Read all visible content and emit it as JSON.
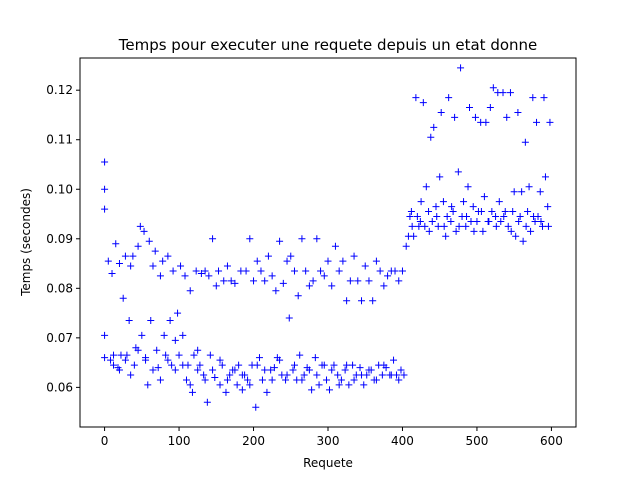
{
  "chart_data": {
    "type": "scatter",
    "title": "Temps pour executer une requete depuis un etat donne",
    "xlabel": "Requete",
    "ylabel": "Temps (secondes)",
    "xlim": [
      -33,
      633
    ],
    "ylim": [
      0.052,
      0.1265
    ],
    "xticks": [
      0,
      100,
      200,
      300,
      400,
      500,
      600
    ],
    "yticks": [
      0.06,
      0.07,
      0.08,
      0.09,
      0.1,
      0.11,
      0.12
    ],
    "xtick_labels": [
      "0",
      "100",
      "200",
      "300",
      "400",
      "500",
      "600"
    ],
    "ytick_labels": [
      "0.06",
      "0.07",
      "0.08",
      "0.09",
      "0.10",
      "0.11",
      "0.12"
    ],
    "grid": false,
    "marker": "+",
    "color": "#0000ff",
    "series": [
      {
        "points": [
          [
            0,
            0.1055
          ],
          [
            0,
            0.1
          ],
          [
            0,
            0.096
          ],
          [
            0,
            0.0705
          ],
          [
            0,
            0.066
          ],
          [
            5,
            0.0855
          ],
          [
            8,
            0.0655
          ],
          [
            10,
            0.083
          ],
          [
            12,
            0.0645
          ],
          [
            15,
            0.089
          ],
          [
            18,
            0.064
          ],
          [
            20,
            0.085
          ],
          [
            22,
            0.0665
          ],
          [
            25,
            0.078
          ],
          [
            28,
            0.0865
          ],
          [
            30,
            0.0665
          ],
          [
            33,
            0.0735
          ],
          [
            35,
            0.0845
          ],
          [
            38,
            0.0865
          ],
          [
            40,
            0.0645
          ],
          [
            42,
            0.068
          ],
          [
            45,
            0.0885
          ],
          [
            48,
            0.0925
          ],
          [
            50,
            0.0705
          ],
          [
            53,
            0.0915
          ],
          [
            55,
            0.066
          ],
          [
            58,
            0.0605
          ],
          [
            60,
            0.0895
          ],
          [
            62,
            0.0735
          ],
          [
            65,
            0.0845
          ],
          [
            68,
            0.0875
          ],
          [
            70,
            0.0675
          ],
          [
            72,
            0.064
          ],
          [
            75,
            0.0825
          ],
          [
            78,
            0.0855
          ],
          [
            80,
            0.0705
          ],
          [
            82,
            0.0665
          ],
          [
            85,
            0.0865
          ],
          [
            88,
            0.0735
          ],
          [
            90,
            0.0645
          ],
          [
            92,
            0.0835
          ],
          [
            95,
            0.0695
          ],
          [
            98,
            0.075
          ],
          [
            100,
            0.0665
          ],
          [
            102,
            0.0845
          ],
          [
            105,
            0.0705
          ],
          [
            108,
            0.0825
          ],
          [
            110,
            0.0615
          ],
          [
            112,
            0.0645
          ],
          [
            115,
            0.0795
          ],
          [
            118,
            0.059
          ],
          [
            120,
            0.0665
          ],
          [
            123,
            0.0835
          ],
          [
            125,
            0.0635
          ],
          [
            128,
            0.0645
          ],
          [
            130,
            0.083
          ],
          [
            133,
            0.0625
          ],
          [
            135,
            0.0835
          ],
          [
            138,
            0.057
          ],
          [
            140,
            0.0825
          ],
          [
            142,
            0.0665
          ],
          [
            145,
            0.09
          ],
          [
            148,
            0.062
          ],
          [
            150,
            0.0805
          ],
          [
            153,
            0.0835
          ],
          [
            155,
            0.0605
          ],
          [
            158,
            0.0645
          ],
          [
            160,
            0.0815
          ],
          [
            163,
            0.059
          ],
          [
            165,
            0.0845
          ],
          [
            168,
            0.0625
          ],
          [
            170,
            0.0815
          ],
          [
            172,
            0.0635
          ],
          [
            175,
            0.081
          ],
          [
            178,
            0.0605
          ],
          [
            180,
            0.0645
          ],
          [
            183,
            0.0835
          ],
          [
            185,
            0.0595
          ],
          [
            188,
            0.0625
          ],
          [
            190,
            0.0835
          ],
          [
            192,
            0.0615
          ],
          [
            195,
            0.09
          ],
          [
            198,
            0.0645
          ],
          [
            200,
            0.0815
          ],
          [
            203,
            0.056
          ],
          [
            205,
            0.0855
          ],
          [
            208,
            0.066
          ],
          [
            210,
            0.0835
          ],
          [
            212,
            0.0615
          ],
          [
            215,
            0.0815
          ],
          [
            218,
            0.059
          ],
          [
            220,
            0.0865
          ],
          [
            223,
            0.0635
          ],
          [
            225,
            0.0825
          ],
          [
            228,
            0.064
          ],
          [
            230,
            0.0795
          ],
          [
            232,
            0.066
          ],
          [
            235,
            0.0895
          ],
          [
            238,
            0.0625
          ],
          [
            240,
            0.081
          ],
          [
            243,
            0.0615
          ],
          [
            245,
            0.0855
          ],
          [
            248,
            0.074
          ],
          [
            250,
            0.0865
          ],
          [
            253,
            0.0635
          ],
          [
            255,
            0.0835
          ],
          [
            258,
            0.0615
          ],
          [
            260,
            0.0785
          ],
          [
            262,
            0.0665
          ],
          [
            265,
            0.09
          ],
          [
            268,
            0.0625
          ],
          [
            270,
            0.0835
          ],
          [
            272,
            0.064
          ],
          [
            275,
            0.0805
          ],
          [
            278,
            0.0595
          ],
          [
            280,
            0.0815
          ],
          [
            283,
            0.066
          ],
          [
            285,
            0.09
          ],
          [
            288,
            0.0605
          ],
          [
            290,
            0.0835
          ],
          [
            292,
            0.0645
          ],
          [
            295,
            0.0825
          ],
          [
            298,
            0.0615
          ],
          [
            300,
            0.0855
          ],
          [
            302,
            0.0595
          ],
          [
            305,
            0.0805
          ],
          [
            308,
            0.0645
          ],
          [
            310,
            0.0885
          ],
          [
            313,
            0.0625
          ],
          [
            315,
            0.0835
          ],
          [
            318,
            0.0615
          ],
          [
            320,
            0.0855
          ],
          [
            323,
            0.0635
          ],
          [
            325,
            0.0775
          ],
          [
            328,
            0.0605
          ],
          [
            330,
            0.0815
          ],
          [
            333,
            0.0645
          ],
          [
            335,
            0.0865
          ],
          [
            338,
            0.0625
          ],
          [
            340,
            0.0815
          ],
          [
            343,
            0.064
          ],
          [
            345,
            0.0775
          ],
          [
            348,
            0.0605
          ],
          [
            350,
            0.0845
          ],
          [
            352,
            0.0625
          ],
          [
            355,
            0.0815
          ],
          [
            358,
            0.0635
          ],
          [
            360,
            0.0775
          ],
          [
            362,
            0.0615
          ],
          [
            365,
            0.0855
          ],
          [
            368,
            0.0645
          ],
          [
            370,
            0.0835
          ],
          [
            373,
            0.0625
          ],
          [
            375,
            0.0805
          ],
          [
            378,
            0.064
          ],
          [
            380,
            0.0825
          ],
          [
            383,
            0.0625
          ],
          [
            385,
            0.0835
          ],
          [
            388,
            0.0655
          ],
          [
            390,
            0.0835
          ],
          [
            392,
            0.0625
          ],
          [
            395,
            0.0815
          ],
          [
            398,
            0.0635
          ],
          [
            400,
            0.0835
          ],
          [
            402,
            0.0625
          ],
          [
            405,
            0.0885
          ],
          [
            408,
            0.0905
          ],
          [
            410,
            0.0945
          ],
          [
            413,
            0.0925
          ],
          [
            415,
            0.0905
          ],
          [
            418,
            0.1185
          ],
          [
            420,
            0.0945
          ],
          [
            422,
            0.0925
          ],
          [
            425,
            0.0975
          ],
          [
            428,
            0.1175
          ],
          [
            430,
            0.0925
          ],
          [
            432,
            0.1005
          ],
          [
            435,
            0.0955
          ],
          [
            438,
            0.1105
          ],
          [
            440,
            0.0935
          ],
          [
            442,
            0.1125
          ],
          [
            445,
            0.0965
          ],
          [
            448,
            0.0925
          ],
          [
            450,
            0.1025
          ],
          [
            452,
            0.1155
          ],
          [
            455,
            0.0975
          ],
          [
            458,
            0.0905
          ],
          [
            460,
            0.0945
          ],
          [
            462,
            0.1185
          ],
          [
            465,
            0.0935
          ],
          [
            468,
            0.0955
          ],
          [
            470,
            0.1145
          ],
          [
            472,
            0.0915
          ],
          [
            475,
            0.1035
          ],
          [
            478,
            0.1245
          ],
          [
            480,
            0.0945
          ],
          [
            482,
            0.0975
          ],
          [
            485,
            0.0925
          ],
          [
            488,
            0.1005
          ],
          [
            490,
            0.1165
          ],
          [
            492,
            0.0935
          ],
          [
            495,
            0.0965
          ],
          [
            498,
            0.1145
          ],
          [
            500,
            0.0935
          ],
          [
            502,
            0.0955
          ],
          [
            505,
            0.1135
          ],
          [
            508,
            0.0915
          ],
          [
            510,
            0.0985
          ],
          [
            512,
            0.1135
          ],
          [
            515,
            0.0935
          ],
          [
            518,
            0.1165
          ],
          [
            520,
            0.0955
          ],
          [
            522,
            0.1205
          ],
          [
            525,
            0.0945
          ],
          [
            528,
            0.1195
          ],
          [
            530,
            0.0975
          ],
          [
            532,
            0.0935
          ],
          [
            535,
            0.1195
          ],
          [
            538,
            0.0955
          ],
          [
            540,
            0.1145
          ],
          [
            542,
            0.0925
          ],
          [
            545,
            0.1195
          ],
          [
            548,
            0.0955
          ],
          [
            550,
            0.0995
          ],
          [
            552,
            0.0905
          ],
          [
            555,
            0.1155
          ],
          [
            558,
            0.0945
          ],
          [
            560,
            0.0995
          ],
          [
            562,
            0.0895
          ],
          [
            565,
            0.1095
          ],
          [
            568,
            0.0955
          ],
          [
            570,
            0.1005
          ],
          [
            572,
            0.0915
          ],
          [
            575,
            0.1185
          ],
          [
            578,
            0.0935
          ],
          [
            580,
            0.1135
          ],
          [
            582,
            0.0945
          ],
          [
            585,
            0.0995
          ],
          [
            588,
            0.0925
          ],
          [
            590,
            0.1185
          ],
          [
            592,
            0.1025
          ],
          [
            595,
            0.0965
          ],
          [
            598,
            0.1135
          ],
          [
            12,
            0.0665
          ],
          [
            20,
            0.0635
          ],
          [
            28,
            0.0655
          ],
          [
            35,
            0.0625
          ],
          [
            45,
            0.0675
          ],
          [
            55,
            0.0655
          ],
          [
            65,
            0.0635
          ],
          [
            75,
            0.0615
          ],
          [
            85,
            0.0655
          ],
          [
            95,
            0.0635
          ],
          [
            105,
            0.0645
          ],
          [
            115,
            0.0605
          ],
          [
            125,
            0.0675
          ],
          [
            135,
            0.0615
          ],
          [
            145,
            0.0635
          ],
          [
            155,
            0.0655
          ],
          [
            165,
            0.0615
          ],
          [
            175,
            0.0635
          ],
          [
            185,
            0.0625
          ],
          [
            195,
            0.0605
          ],
          [
            205,
            0.0645
          ],
          [
            215,
            0.0635
          ],
          [
            225,
            0.0615
          ],
          [
            235,
            0.0655
          ],
          [
            245,
            0.0625
          ],
          [
            255,
            0.0645
          ],
          [
            265,
            0.0615
          ],
          [
            275,
            0.0635
          ],
          [
            285,
            0.0625
          ],
          [
            295,
            0.0645
          ],
          [
            305,
            0.0635
          ],
          [
            315,
            0.0605
          ],
          [
            325,
            0.0645
          ],
          [
            335,
            0.0615
          ],
          [
            345,
            0.0625
          ],
          [
            355,
            0.0635
          ],
          [
            365,
            0.0615
          ],
          [
            375,
            0.0645
          ],
          [
            385,
            0.0625
          ],
          [
            395,
            0.0615
          ],
          [
            412,
            0.0955
          ],
          [
            424,
            0.0935
          ],
          [
            436,
            0.0915
          ],
          [
            446,
            0.0945
          ],
          [
            456,
            0.0925
          ],
          [
            466,
            0.0965
          ],
          [
            476,
            0.0925
          ],
          [
            486,
            0.0945
          ],
          [
            496,
            0.0915
          ],
          [
            506,
            0.0955
          ],
          [
            516,
            0.0935
          ],
          [
            526,
            0.0925
          ],
          [
            536,
            0.0945
          ],
          [
            546,
            0.0915
          ],
          [
            556,
            0.0935
          ],
          [
            566,
            0.0925
          ],
          [
            576,
            0.0945
          ],
          [
            586,
            0.0935
          ],
          [
            596,
            0.0925
          ]
        ]
      }
    ]
  }
}
